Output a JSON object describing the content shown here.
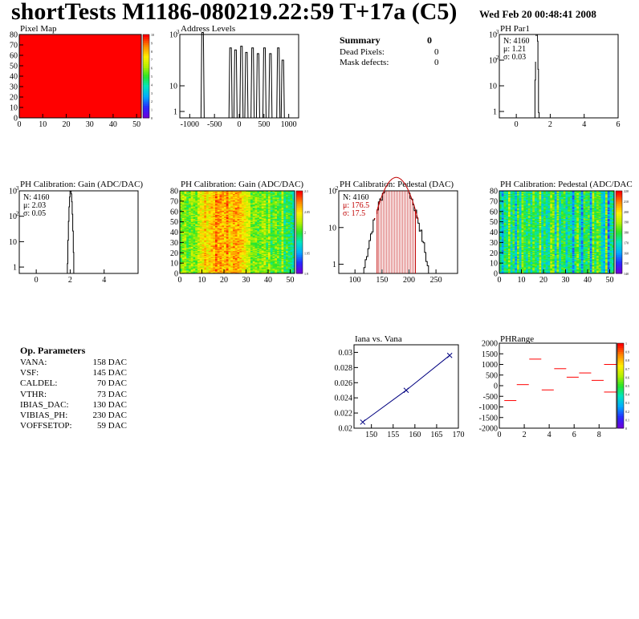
{
  "page": {
    "title": "shortTests M1186-080219.22:59 T+17a (C5)",
    "date": "Wed Feb 20 00:48:41 2008"
  },
  "summary": {
    "title": "Summary",
    "title_value": "0",
    "rows": [
      {
        "label": "Dead Pixels:",
        "value": "0"
      },
      {
        "label": "Mask defects:",
        "value": "0"
      }
    ]
  },
  "op_params": {
    "title": "Op. Parameters",
    "rows": [
      {
        "label": "VANA:",
        "value": "158 DAC"
      },
      {
        "label": "VSF:",
        "value": "145 DAC"
      },
      {
        "label": "CALDEL:",
        "value": "70 DAC"
      },
      {
        "label": "VTHR:",
        "value": "73 DAC"
      },
      {
        "label": "IBIAS_DAC:",
        "value": "130 DAC"
      },
      {
        "label": "VIBIAS_PH:",
        "value": "230 DAC"
      },
      {
        "label": "VOFFSETOP:",
        "value": "59 DAC"
      }
    ]
  },
  "colors": {
    "red": "#ff0000",
    "navy": "#000080",
    "hist": "#000000",
    "pedestal_fit": "#c00000"
  },
  "chart_data": [
    {
      "id": "pixel_map",
      "type": "heatmap",
      "title": "Pixel Map",
      "xlim": [
        0,
        52
      ],
      "ylim": [
        0,
        80
      ],
      "x_ticks": [
        "0",
        "10",
        "20",
        "30",
        "40",
        "50"
      ],
      "y_ticks": [
        "0",
        "10",
        "20",
        "30",
        "40",
        "50",
        "60",
        "70",
        "80"
      ],
      "z_ticks": [
        "0",
        "1",
        "2",
        "3",
        "4",
        "5",
        "6",
        "7",
        "8",
        "9",
        "10"
      ],
      "values": "all pixels = 10"
    },
    {
      "id": "address_levels",
      "type": "bar",
      "title": "Address Levels",
      "xlim": [
        -1200,
        1200
      ],
      "log_y": true,
      "x_ticks": [
        "-1000",
        "-500",
        "0",
        "500",
        "1000"
      ],
      "y_ticks": [
        "1",
        "10",
        "10^3"
      ],
      "peaks": [
        {
          "x": -740,
          "height": 1200
        },
        {
          "x": -175,
          "height": 300
        },
        {
          "x": -75,
          "height": 250
        },
        {
          "x": 45,
          "height": 350
        },
        {
          "x": 145,
          "height": 200
        },
        {
          "x": 270,
          "height": 300
        },
        {
          "x": 380,
          "height": 180
        },
        {
          "x": 510,
          "height": 300
        },
        {
          "x": 630,
          "height": 180
        },
        {
          "x": 790,
          "height": 300
        },
        {
          "x": 880,
          "height": 100
        }
      ]
    },
    {
      "id": "ph_par1",
      "type": "bar",
      "title": "PH Par1",
      "xlim": [
        -1,
        6
      ],
      "log_y": true,
      "x_ticks": [
        "0",
        "2",
        "4",
        "6"
      ],
      "y_ticks": [
        "1",
        "10",
        "10^2",
        "10^3"
      ],
      "stats": [
        "N: 4160",
        "μ: 1.21",
        "σ: 0.03"
      ],
      "peak": {
        "mean": 1.21,
        "sigma": 0.03,
        "entries": 4160
      }
    },
    {
      "id": "gain_1d",
      "type": "bar",
      "title": "PH Calibration: Gain (ADC/DAC)",
      "xlim": [
        -1,
        6
      ],
      "log_y": true,
      "x_ticks": [
        "0",
        "2",
        "4"
      ],
      "y_ticks": [
        "1",
        "10",
        "10^2",
        "10^3"
      ],
      "stats": [
        "N: 4160",
        "μ: 2.03",
        "σ: 0.05"
      ],
      "peak": {
        "mean": 2.03,
        "sigma": 0.05,
        "entries": 4160
      }
    },
    {
      "id": "gain_map",
      "type": "heatmap",
      "title": "PH Calibration: Gain (ADC/DAC)",
      "xlim": [
        0,
        52
      ],
      "ylim": [
        0,
        80
      ],
      "x_ticks": [
        "0",
        "10",
        "20",
        "30",
        "40",
        "50"
      ],
      "y_ticks": [
        "0",
        "10",
        "20",
        "30",
        "40",
        "50",
        "60",
        "70",
        "80"
      ],
      "z_ticks": [
        "1.9",
        "1.95",
        "2",
        "2.05",
        "2.1"
      ]
    },
    {
      "id": "pedestal_1d",
      "type": "bar",
      "title": "PH Calibration: Pedestal (DAC)",
      "xlim": [
        70,
        290
      ],
      "log_y": true,
      "x_ticks": [
        "100",
        "150",
        "200",
        "250"
      ],
      "y_ticks": [
        "1",
        "10",
        "10^2"
      ],
      "stats": [
        "N: 4160",
        "μ: 176.5",
        "σ: 17.5"
      ],
      "peak": {
        "mean": 176.5,
        "sigma": 17.5,
        "entries": 4160
      },
      "cut_lines": [
        141,
        212
      ]
    },
    {
      "id": "pedestal_map",
      "type": "heatmap",
      "title": "PH Calibration: Pedestal (ADC/DAC",
      "xlim": [
        0,
        52
      ],
      "ylim": [
        0,
        80
      ],
      "x_ticks": [
        "0",
        "10",
        "20",
        "30",
        "40",
        "50"
      ],
      "y_ticks": [
        "0",
        "10",
        "20",
        "30",
        "40",
        "50",
        "60",
        "70",
        "80"
      ],
      "z_ticks": [
        "140",
        "150",
        "160",
        "170",
        "180",
        "190",
        "200",
        "210",
        "220"
      ]
    },
    {
      "id": "iana_vana",
      "type": "line",
      "title": "Iana vs. Vana",
      "xlim": [
        146,
        170
      ],
      "ylim": [
        0.02,
        0.031
      ],
      "x_ticks": [
        "150",
        "155",
        "160",
        "165",
        "170"
      ],
      "y_ticks": [
        "0.02",
        "0.022",
        "0.024",
        "0.026",
        "0.028",
        "0.03"
      ],
      "x": [
        148,
        158,
        168
      ],
      "y": [
        0.0208,
        0.025,
        0.0296
      ]
    },
    {
      "id": "ph_range",
      "type": "scatter",
      "title": "PHRange",
      "xlim": [
        0,
        9.4
      ],
      "ylim": [
        -2000,
        2000
      ],
      "x_ticks": [
        "0",
        "2",
        "4",
        "6",
        "8"
      ],
      "y_ticks": [
        "-2000",
        "-1500",
        "-1000",
        "-500",
        "0",
        "500",
        "1000",
        "1500",
        "2000"
      ],
      "z_ticks": [
        "0",
        "0.1",
        "0.2",
        "0.3",
        "0.4",
        "0.5",
        "0.6",
        "0.7",
        "0.8",
        "0.9",
        "1"
      ],
      "segments": [
        {
          "x": 0.4,
          "y": -700
        },
        {
          "x": 1.4,
          "y": 50
        },
        {
          "x": 2.4,
          "y": 1250
        },
        {
          "x": 3.4,
          "y": -200
        },
        {
          "x": 4.4,
          "y": 800
        },
        {
          "x": 5.4,
          "y": 400
        },
        {
          "x": 6.4,
          "y": 600
        },
        {
          "x": 7.4,
          "y": 250
        },
        {
          "x": 8.4,
          "y": -300
        },
        {
          "x": 8.4,
          "y": 1000
        }
      ]
    }
  ]
}
